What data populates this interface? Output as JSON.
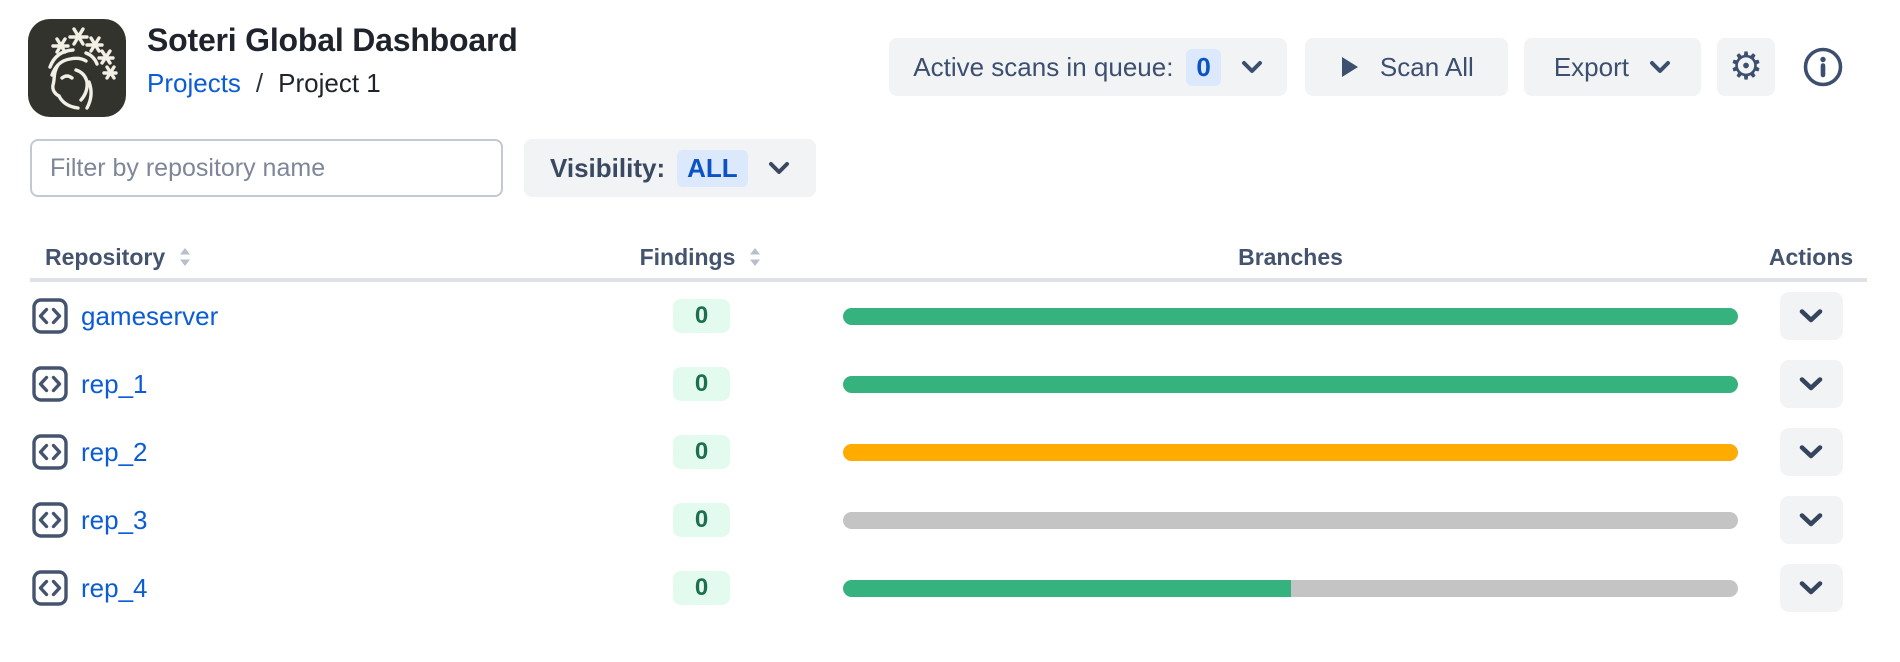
{
  "app": {
    "title": "Soteri Global Dashboard"
  },
  "breadcrumb": {
    "projects": "Projects",
    "separator": "/",
    "current": "Project 1"
  },
  "toolbar": {
    "queue_label": "Active scans in queue:",
    "queue_count": "0",
    "scan_all_label": "Scan All",
    "export_label": "Export"
  },
  "filters": {
    "filter_placeholder": "Filter by repository name",
    "visibility_label": "Visibility:",
    "visibility_value": "ALL"
  },
  "table": {
    "columns": {
      "repository": "Repository",
      "findings": "Findings",
      "branches": "Branches",
      "actions": "Actions"
    },
    "track_color": "#c4c4c4",
    "rows": [
      {
        "name": "gameserver",
        "findings": "0",
        "bar": {
          "percent": 100,
          "color": "#35b27d"
        }
      },
      {
        "name": "rep_1",
        "findings": "0",
        "bar": {
          "percent": 100,
          "color": "#35b27d"
        }
      },
      {
        "name": "rep_2",
        "findings": "0",
        "bar": {
          "percent": 100,
          "color": "#ffab00"
        }
      },
      {
        "name": "rep_3",
        "findings": "0",
        "bar": {
          "percent": 0,
          "color": "#35b27d"
        }
      },
      {
        "name": "rep_4",
        "findings": "0",
        "bar": {
          "percent": 50,
          "color": "#35b27d"
        }
      }
    ]
  },
  "colors": {
    "link_blue": "#0b5cd6",
    "slate_text": "#3d4f6e",
    "button_bg": "#f2f3f5",
    "blue_badge_bg": "#dce9fc",
    "blue_badge_text": "#0b53c4",
    "green_bar": "#35b27d",
    "orange_bar": "#ffab00",
    "gray_track": "#c4c4c4",
    "findings_badge_bg": "#e3fbee",
    "findings_badge_text": "#1d6f51"
  }
}
